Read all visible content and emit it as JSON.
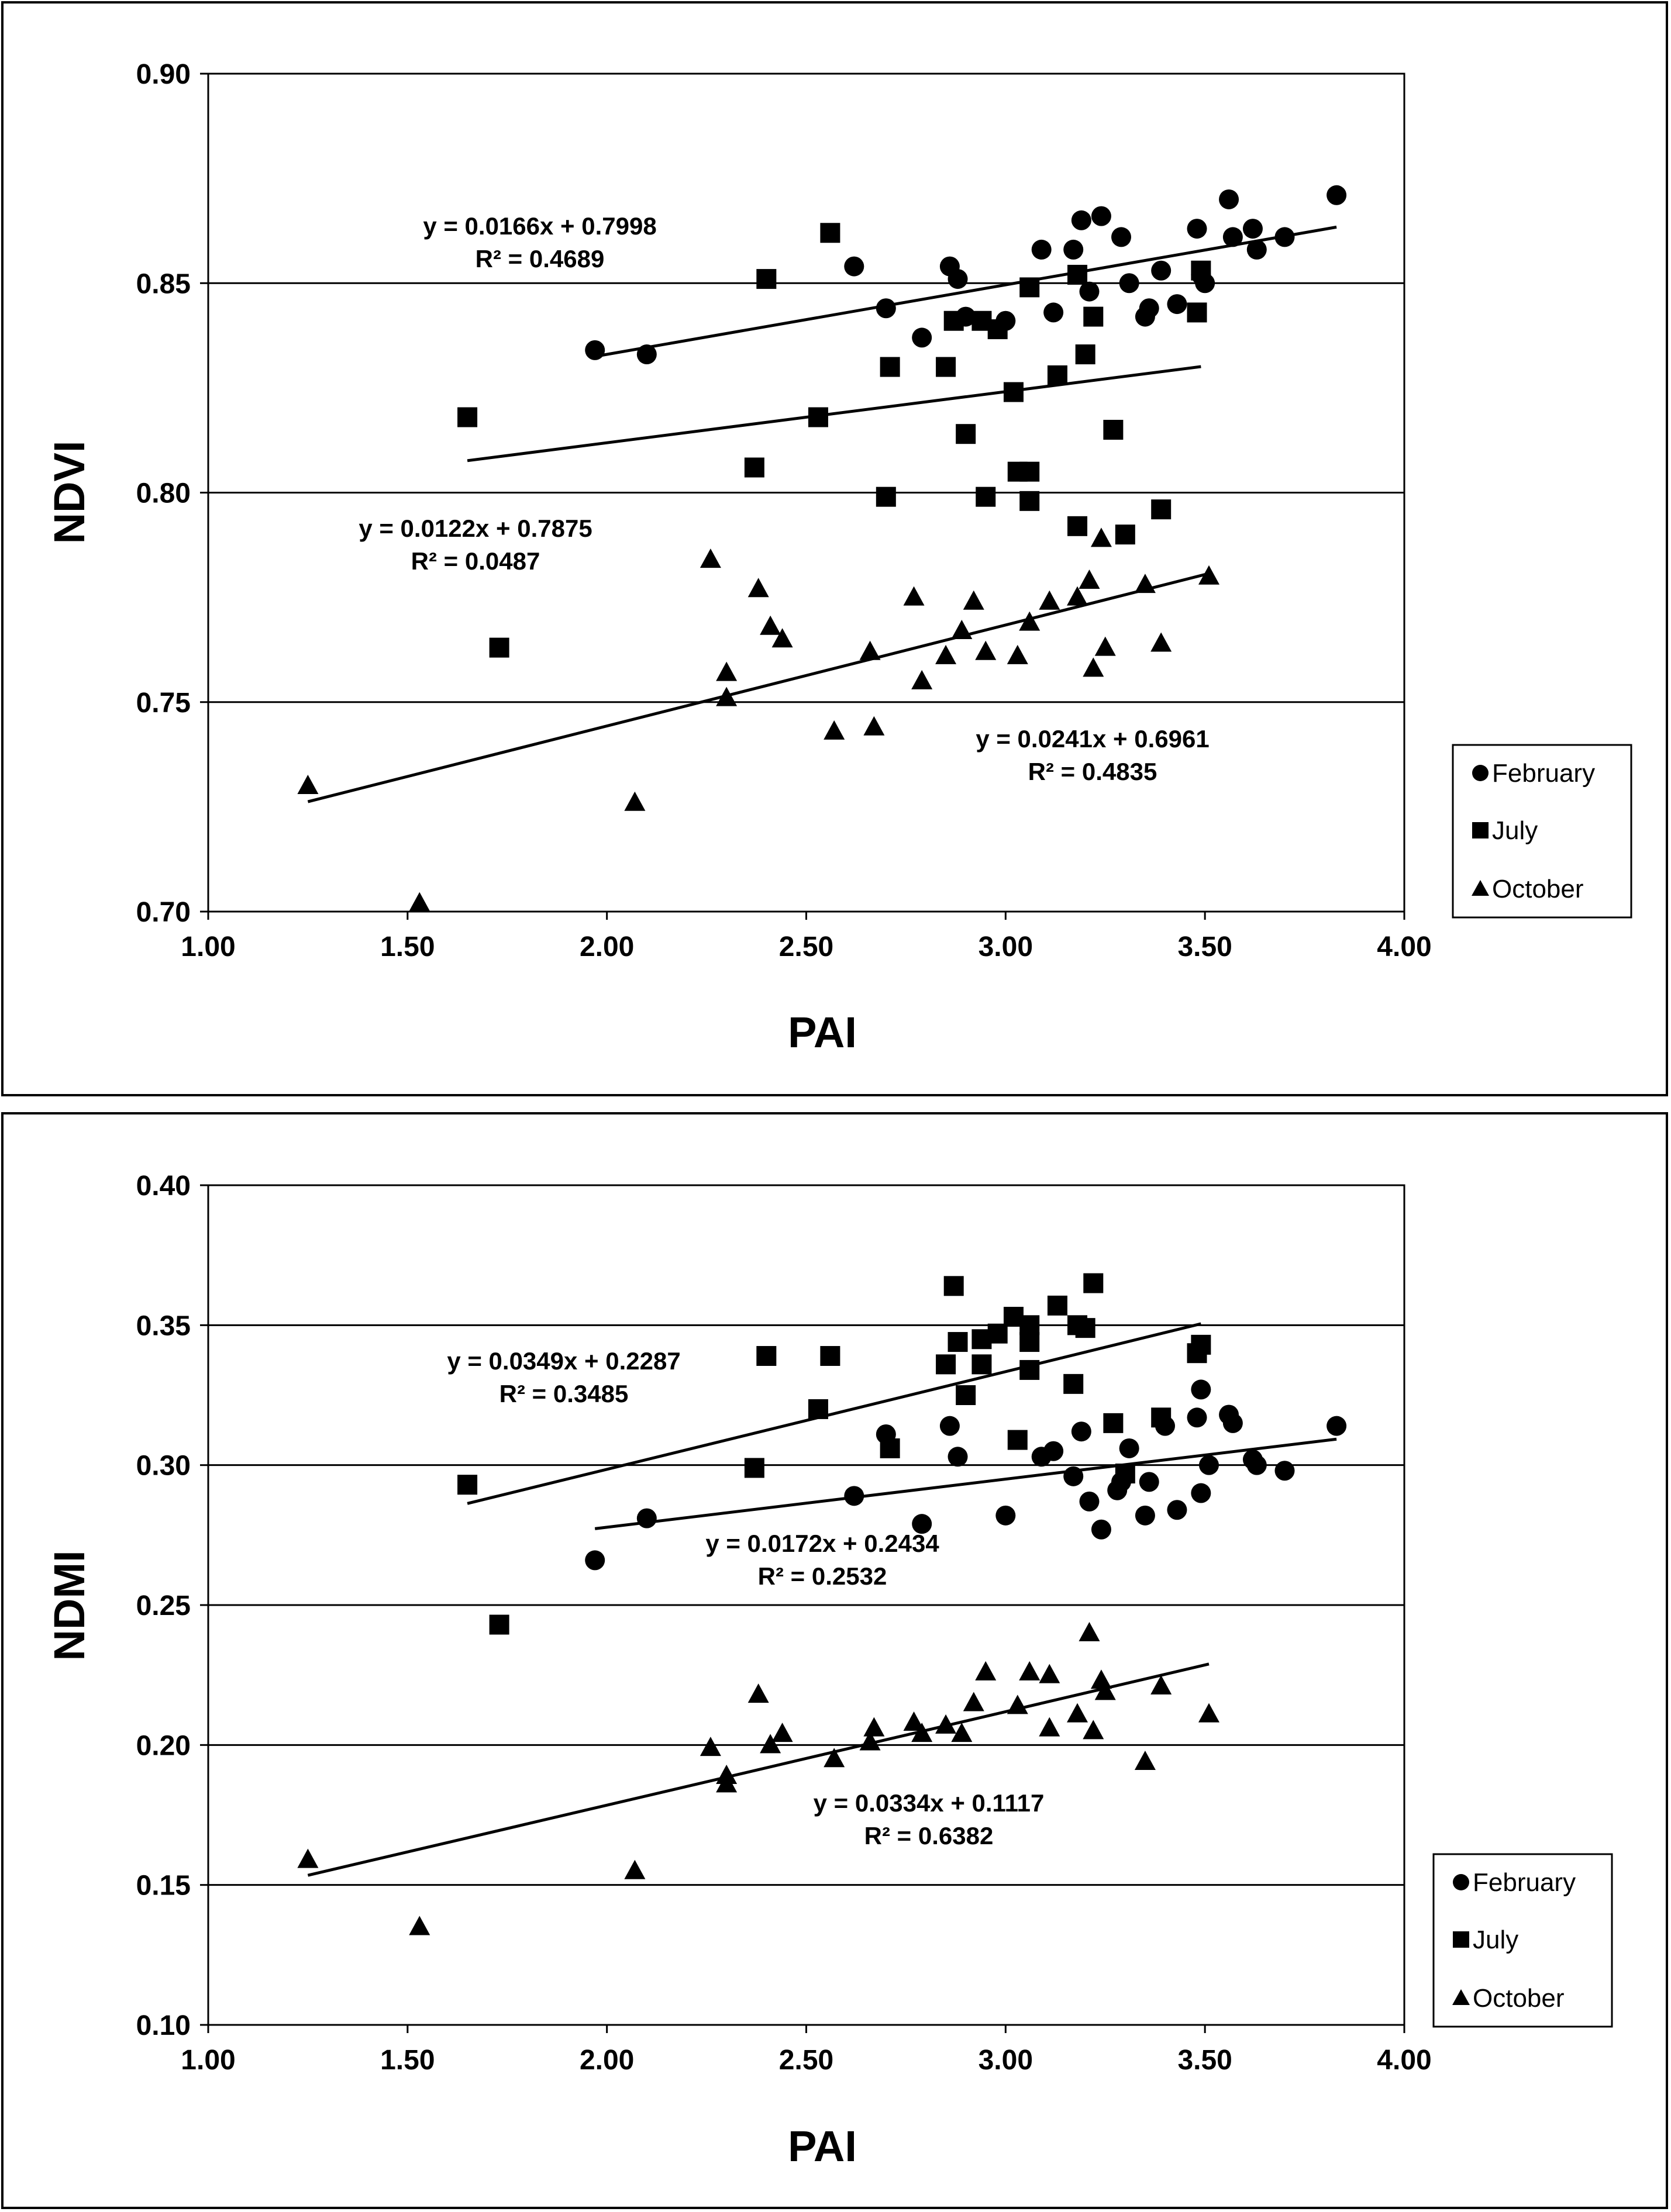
{
  "chart_data": [
    {
      "type": "scatter",
      "title": "",
      "xlabel": "PAI",
      "ylabel": "NDVI",
      "xlim": [
        1.0,
        4.0
      ],
      "ylim": [
        0.7,
        0.9
      ],
      "xticks": [
        "1.00",
        "1.50",
        "2.00",
        "2.50",
        "3.00",
        "3.50",
        "4.00"
      ],
      "yticks": [
        "0.70",
        "0.75",
        "0.80",
        "0.85",
        "0.90"
      ],
      "legend": {
        "position": "right",
        "entries": [
          "February",
          "July",
          "October"
        ]
      },
      "series": [
        {
          "name": "February",
          "marker": "circle",
          "points": [
            [
              1.97,
              0.834
            ],
            [
              2.1,
              0.833
            ],
            [
              2.62,
              0.854
            ],
            [
              2.7,
              0.844
            ],
            [
              2.79,
              0.837
            ],
            [
              2.86,
              0.854
            ],
            [
              2.88,
              0.851
            ],
            [
              2.9,
              0.842
            ],
            [
              3.0,
              0.841
            ],
            [
              3.09,
              0.858
            ],
            [
              3.12,
              0.843
            ],
            [
              3.17,
              0.858
            ],
            [
              3.19,
              0.865
            ],
            [
              3.21,
              0.848
            ],
            [
              3.24,
              0.866
            ],
            [
              3.29,
              0.861
            ],
            [
              3.31,
              0.85
            ],
            [
              3.35,
              0.842
            ],
            [
              3.36,
              0.844
            ],
            [
              3.39,
              0.853
            ],
            [
              3.43,
              0.845
            ],
            [
              3.48,
              0.863
            ],
            [
              3.49,
              0.852
            ],
            [
              3.5,
              0.85
            ],
            [
              3.56,
              0.87
            ],
            [
              3.57,
              0.861
            ],
            [
              3.62,
              0.863
            ],
            [
              3.63,
              0.858
            ],
            [
              3.7,
              0.861
            ],
            [
              3.83,
              0.871
            ]
          ]
        },
        {
          "name": "July",
          "marker": "square",
          "points": [
            [
              1.65,
              0.818
            ],
            [
              1.73,
              0.763
            ],
            [
              2.37,
              0.806
            ],
            [
              2.4,
              0.851
            ],
            [
              2.53,
              0.818
            ],
            [
              2.56,
              0.862
            ],
            [
              2.7,
              0.799
            ],
            [
              2.71,
              0.83
            ],
            [
              2.85,
              0.83
            ],
            [
              2.87,
              0.841
            ],
            [
              2.9,
              0.814
            ],
            [
              2.94,
              0.841
            ],
            [
              2.95,
              0.799
            ],
            [
              2.98,
              0.839
            ],
            [
              3.02,
              0.824
            ],
            [
              3.03,
              0.805
            ],
            [
              3.06,
              0.849
            ],
            [
              3.06,
              0.805
            ],
            [
              3.06,
              0.798
            ],
            [
              3.13,
              0.828
            ],
            [
              3.18,
              0.792
            ],
            [
              3.18,
              0.852
            ],
            [
              3.2,
              0.833
            ],
            [
              3.22,
              0.842
            ],
            [
              3.27,
              0.815
            ],
            [
              3.3,
              0.79
            ],
            [
              3.39,
              0.796
            ],
            [
              3.48,
              0.843
            ],
            [
              3.49,
              0.853
            ]
          ]
        },
        {
          "name": "October",
          "marker": "triangle",
          "points": [
            [
              1.25,
              0.73
            ],
            [
              1.53,
              0.702
            ],
            [
              2.07,
              0.726
            ],
            [
              2.26,
              0.784
            ],
            [
              2.3,
              0.757
            ],
            [
              2.3,
              0.751
            ],
            [
              2.38,
              0.777
            ],
            [
              2.41,
              0.768
            ],
            [
              2.44,
              0.765
            ],
            [
              2.57,
              0.743
            ],
            [
              2.66,
              0.762
            ],
            [
              2.67,
              0.744
            ],
            [
              2.77,
              0.775
            ],
            [
              2.79,
              0.755
            ],
            [
              2.85,
              0.761
            ],
            [
              2.89,
              0.767
            ],
            [
              2.92,
              0.774
            ],
            [
              2.95,
              0.762
            ],
            [
              3.03,
              0.761
            ],
            [
              3.06,
              0.769
            ],
            [
              3.11,
              0.774
            ],
            [
              3.18,
              0.775
            ],
            [
              3.21,
              0.779
            ],
            [
              3.22,
              0.758
            ],
            [
              3.24,
              0.789
            ],
            [
              3.25,
              0.763
            ],
            [
              3.35,
              0.778
            ],
            [
              3.39,
              0.764
            ],
            [
              3.51,
              0.78
            ]
          ]
        }
      ],
      "trendlines": [
        {
          "series": "February",
          "slope": 0.0166,
          "intercept": 0.7998,
          "x_range": [
            1.97,
            3.83
          ],
          "equation": "y = 0.0166x + 0.7998",
          "r2": "R² = 0.4689"
        },
        {
          "series": "July",
          "slope": 0.0122,
          "intercept": 0.7875,
          "x_range": [
            1.65,
            3.49
          ],
          "equation": "y = 0.0122x + 0.7875",
          "r2": "R² = 0.0487"
        },
        {
          "series": "October",
          "slope": 0.0241,
          "intercept": 0.6961,
          "x_range": [
            1.25,
            3.51
          ],
          "equation": "y = 0.0241x + 0.6961",
          "r2": "R² = 0.4835"
        }
      ]
    },
    {
      "type": "scatter",
      "title": "",
      "xlabel": "PAI",
      "ylabel": "NDMI",
      "xlim": [
        1.0,
        4.0
      ],
      "ylim": [
        0.1,
        0.4
      ],
      "xticks": [
        "1.00",
        "1.50",
        "2.00",
        "2.50",
        "3.00",
        "3.50",
        "4.00"
      ],
      "yticks": [
        "0.10",
        "0.15",
        "0.20",
        "0.25",
        "0.30",
        "0.35",
        "0.40"
      ],
      "legend": {
        "position": "right",
        "entries": [
          "February",
          "July",
          "October"
        ]
      },
      "series": [
        {
          "name": "February",
          "marker": "circle",
          "points": [
            [
              1.97,
              0.266
            ],
            [
              2.1,
              0.281
            ],
            [
              2.62,
              0.289
            ],
            [
              2.7,
              0.311
            ],
            [
              2.79,
              0.279
            ],
            [
              2.86,
              0.314
            ],
            [
              2.88,
              0.303
            ],
            [
              3.0,
              0.282
            ],
            [
              3.09,
              0.303
            ],
            [
              3.12,
              0.305
            ],
            [
              3.17,
              0.296
            ],
            [
              3.19,
              0.312
            ],
            [
              3.21,
              0.287
            ],
            [
              3.24,
              0.277
            ],
            [
              3.28,
              0.291
            ],
            [
              3.29,
              0.294
            ],
            [
              3.31,
              0.306
            ],
            [
              3.35,
              0.282
            ],
            [
              3.36,
              0.294
            ],
            [
              3.4,
              0.314
            ],
            [
              3.43,
              0.284
            ],
            [
              3.48,
              0.317
            ],
            [
              3.49,
              0.327
            ],
            [
              3.49,
              0.29
            ],
            [
              3.51,
              0.3
            ],
            [
              3.56,
              0.318
            ],
            [
              3.57,
              0.315
            ],
            [
              3.62,
              0.302
            ],
            [
              3.63,
              0.3
            ],
            [
              3.7,
              0.298
            ],
            [
              3.83,
              0.314
            ]
          ]
        },
        {
          "name": "July",
          "marker": "square",
          "points": [
            [
              1.65,
              0.293
            ],
            [
              1.73,
              0.243
            ],
            [
              2.37,
              0.299
            ],
            [
              2.4,
              0.339
            ],
            [
              2.53,
              0.32
            ],
            [
              2.56,
              0.339
            ],
            [
              2.71,
              0.306
            ],
            [
              2.85,
              0.336
            ],
            [
              2.87,
              0.364
            ],
            [
              2.88,
              0.344
            ],
            [
              2.9,
              0.325
            ],
            [
              2.94,
              0.345
            ],
            [
              2.94,
              0.336
            ],
            [
              2.98,
              0.347
            ],
            [
              3.02,
              0.353
            ],
            [
              3.03,
              0.309
            ],
            [
              3.06,
              0.35
            ],
            [
              3.06,
              0.344
            ],
            [
              3.06,
              0.334
            ],
            [
              3.13,
              0.357
            ],
            [
              3.17,
              0.329
            ],
            [
              3.18,
              0.35
            ],
            [
              3.2,
              0.349
            ],
            [
              3.22,
              0.365
            ],
            [
              3.27,
              0.315
            ],
            [
              3.3,
              0.297
            ],
            [
              3.39,
              0.317
            ],
            [
              3.48,
              0.34
            ],
            [
              3.49,
              0.343
            ]
          ]
        },
        {
          "name": "October",
          "marker": "triangle",
          "points": [
            [
              1.25,
              0.159
            ],
            [
              1.53,
              0.135
            ],
            [
              2.07,
              0.155
            ],
            [
              2.26,
              0.199
            ],
            [
              2.3,
              0.189
            ],
            [
              2.3,
              0.186
            ],
            [
              2.38,
              0.218
            ],
            [
              2.41,
              0.2
            ],
            [
              2.44,
              0.204
            ],
            [
              2.57,
              0.195
            ],
            [
              2.66,
              0.201
            ],
            [
              2.67,
              0.206
            ],
            [
              2.77,
              0.208
            ],
            [
              2.79,
              0.204
            ],
            [
              2.85,
              0.207
            ],
            [
              2.89,
              0.204
            ],
            [
              2.92,
              0.215
            ],
            [
              2.95,
              0.226
            ],
            [
              3.03,
              0.214
            ],
            [
              3.06,
              0.226
            ],
            [
              3.11,
              0.225
            ],
            [
              3.11,
              0.206
            ],
            [
              3.18,
              0.211
            ],
            [
              3.21,
              0.24
            ],
            [
              3.22,
              0.205
            ],
            [
              3.24,
              0.223
            ],
            [
              3.25,
              0.219
            ],
            [
              3.35,
              0.194
            ],
            [
              3.39,
              0.221
            ],
            [
              3.51,
              0.211
            ]
          ]
        }
      ],
      "trendlines": [
        {
          "series": "February",
          "slope": 0.0172,
          "intercept": 0.2434,
          "x_range": [
            1.97,
            3.83
          ],
          "equation": "y = 0.0172x + 0.2434",
          "r2": "R² = 0.2532"
        },
        {
          "series": "July",
          "slope": 0.0349,
          "intercept": 0.2287,
          "x_range": [
            1.65,
            3.49
          ],
          "equation": "y = 0.0349x + 0.2287",
          "r2": "R² = 0.3485"
        },
        {
          "series": "October",
          "slope": 0.0334,
          "intercept": 0.1117,
          "x_range": [
            1.25,
            3.51
          ],
          "equation": "y = 0.0334x + 0.1117",
          "r2": "R² = 0.6382"
        }
      ]
    }
  ]
}
